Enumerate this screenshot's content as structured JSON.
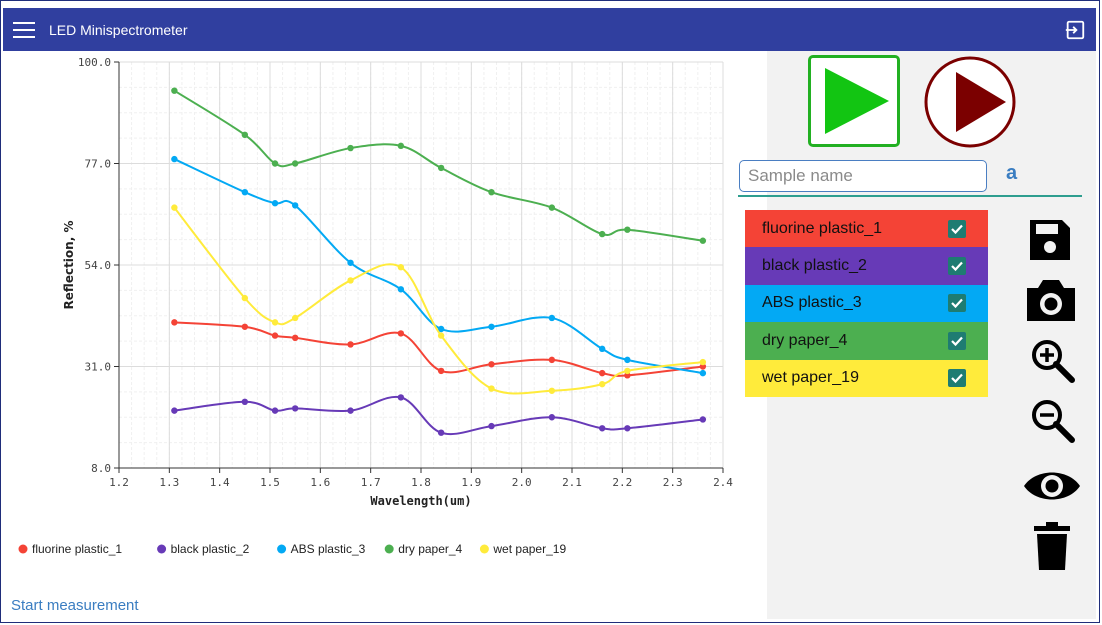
{
  "app": {
    "title": "LED Minispectrometer"
  },
  "status": {
    "text": "Start measurement"
  },
  "sample": {
    "placeholder": "Sample name",
    "font_indicator": "a"
  },
  "samples": [
    {
      "name": "fluorine plastic_1",
      "color": "#f44336",
      "checked": true
    },
    {
      "name": "black plastic_2",
      "color": "#673ab7",
      "checked": true
    },
    {
      "name": "ABS plastic_3",
      "color": "#03a9f4",
      "checked": true
    },
    {
      "name": "dry paper_4",
      "color": "#4caf50",
      "checked": true
    },
    {
      "name": "wet paper_19",
      "color": "#ffeb3b",
      "checked": true
    }
  ],
  "tools": [
    "save-icon",
    "camera-icon",
    "zoom-in-icon",
    "zoom-out-icon",
    "eye-icon",
    "trash-icon"
  ],
  "colors": {
    "appbar": "#303f9f",
    "accent": "#2e9e8f",
    "play": "#22b022",
    "play_alt": "#7b0000"
  },
  "chart_data": {
    "type": "line",
    "xlabel": "Wavelength(um)",
    "ylabel": "Reflection, %",
    "xlim": [
      1.2,
      2.4
    ],
    "ylim": [
      8.0,
      100.0
    ],
    "xticks": [
      "1.2",
      "1.3",
      "1.4",
      "1.5",
      "1.6",
      "1.7",
      "1.8",
      "1.9",
      "2.0",
      "2.1",
      "2.2",
      "2.3",
      "2.4"
    ],
    "yticks": [
      "8.0",
      "31.0",
      "54.0",
      "77.0",
      "100.0"
    ],
    "legend_position": "bottom-left",
    "grid": true,
    "x": [
      1.31,
      1.45,
      1.51,
      1.55,
      1.66,
      1.76,
      1.84,
      1.94,
      2.06,
      2.16,
      2.21,
      2.36
    ],
    "series": [
      {
        "name": "fluorine plastic_1",
        "color": "#f44336",
        "values": [
          41,
          40,
          38,
          37.5,
          36,
          38.5,
          30,
          31.5,
          32.5,
          29.5,
          29,
          31
        ]
      },
      {
        "name": "black plastic_2",
        "color": "#673ab7",
        "values": [
          21,
          23,
          21,
          21.5,
          21,
          24,
          16,
          17.5,
          19.5,
          17,
          17,
          19
        ]
      },
      {
        "name": "ABS plastic_3",
        "color": "#03a9f4",
        "values": [
          78,
          70.5,
          68,
          67.5,
          54.5,
          48.5,
          39.5,
          40,
          42,
          35,
          32.5,
          29.5
        ]
      },
      {
        "name": "dry paper_4",
        "color": "#4caf50",
        "values": [
          93.5,
          83.5,
          77,
          77,
          80.5,
          81,
          76,
          70.5,
          67,
          61,
          62,
          59.5
        ]
      },
      {
        "name": "wet paper_19",
        "color": "#ffeb3b",
        "values": [
          67,
          46.5,
          41,
          42,
          50.5,
          53.5,
          38,
          26,
          25.5,
          27,
          30,
          32
        ]
      }
    ]
  }
}
